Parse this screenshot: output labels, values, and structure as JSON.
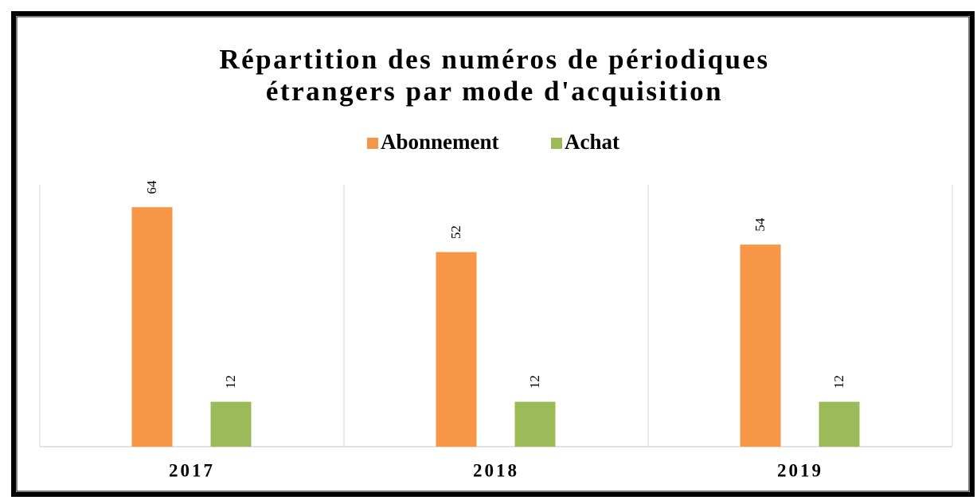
{
  "chart_data": {
    "type": "bar",
    "title": [
      "Répartition des numéros de périodiques",
      "étrangers par mode d'acquisition"
    ],
    "categories": [
      "2017",
      "2018",
      "2019"
    ],
    "series": [
      {
        "name": "Abonnement",
        "color": "#f79646",
        "values": [
          64,
          52,
          54
        ]
      },
      {
        "name": "Achat",
        "color": "#9bbb59",
        "values": [
          12,
          12,
          12
        ]
      }
    ],
    "ylim": [
      0,
      70
    ]
  }
}
